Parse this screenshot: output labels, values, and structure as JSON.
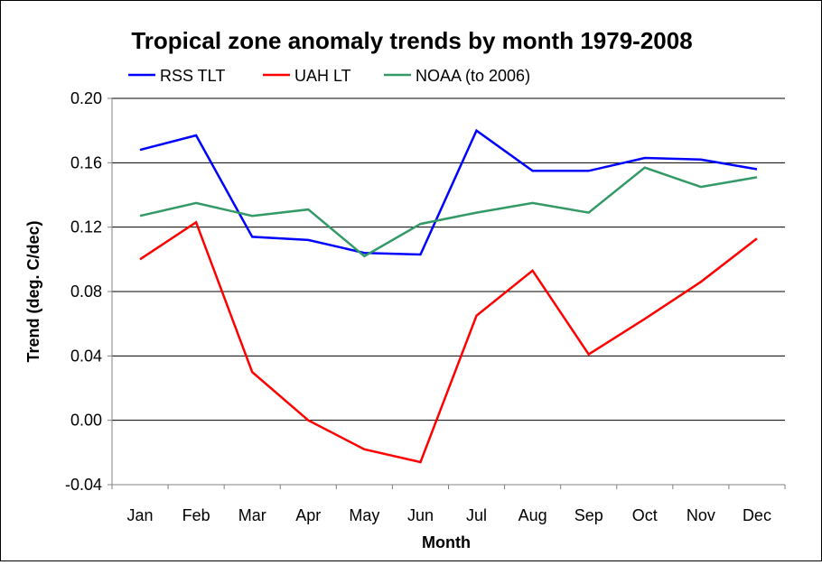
{
  "chart_data": {
    "type": "line",
    "title": "Tropical zone anomaly trends by month 1979-2008",
    "xlabel": "Month",
    "ylabel": "Trend (deg. C/dec)",
    "categories": [
      "Jan",
      "Feb",
      "Mar",
      "Apr",
      "May",
      "Jun",
      "Jul",
      "Aug",
      "Sep",
      "Oct",
      "Nov",
      "Dec"
    ],
    "ylim": [
      -0.04,
      0.2
    ],
    "yticks": [
      "0.20",
      "0.16",
      "0.12",
      "0.08",
      "0.04",
      "0.00",
      "-0.04"
    ],
    "ytick_values": [
      0.2,
      0.16,
      0.12,
      0.08,
      0.04,
      0.0,
      -0.04
    ],
    "grid": true,
    "legend_position": "top",
    "series": [
      {
        "name": "RSS TLT",
        "color": "#0000ff",
        "values": [
          0.168,
          0.177,
          0.114,
          0.112,
          0.104,
          0.103,
          0.18,
          0.155,
          0.155,
          0.163,
          0.162,
          0.156
        ]
      },
      {
        "name": "UAH LT",
        "color": "#ff0000",
        "values": [
          0.1,
          0.123,
          0.03,
          0.0,
          -0.018,
          -0.026,
          0.065,
          0.093,
          0.041,
          0.063,
          0.086,
          0.113
        ]
      },
      {
        "name": "NOAA (to 2006)",
        "color": "#339966",
        "values": [
          0.127,
          0.135,
          0.127,
          0.131,
          0.102,
          0.122,
          0.129,
          0.135,
          0.129,
          0.157,
          0.145,
          0.151
        ]
      }
    ]
  }
}
